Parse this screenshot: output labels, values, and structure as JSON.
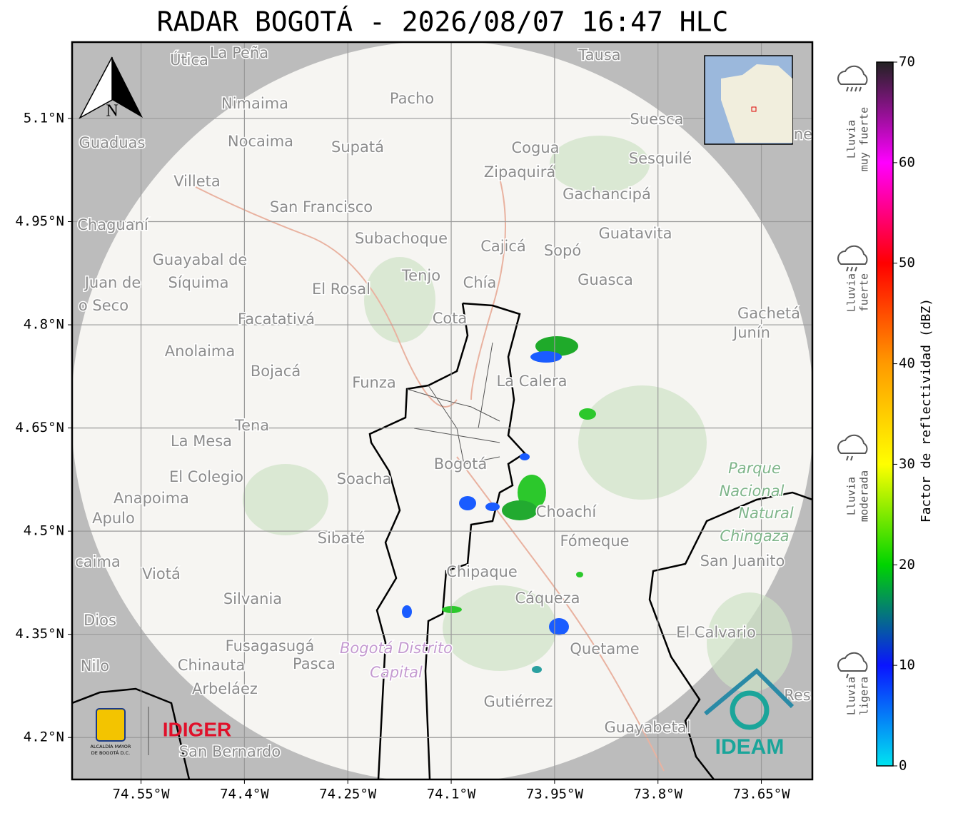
{
  "title": "RADAR BOGOTÁ - 2026/08/07 16:47 HLC",
  "map": {
    "xlim": [
      -74.65,
      -73.576
    ],
    "ylim": [
      4.139,
      5.211
    ],
    "xticks": [
      {
        "value": -74.55,
        "label": "74.55°W"
      },
      {
        "value": -74.4,
        "label": "74.4°W"
      },
      {
        "value": -74.25,
        "label": "74.25°W"
      },
      {
        "value": -74.1,
        "label": "74.1°W"
      },
      {
        "value": -73.95,
        "label": "73.95°W"
      },
      {
        "value": -73.8,
        "label": "73.8°W"
      },
      {
        "value": -73.65,
        "label": "73.65°W"
      }
    ],
    "yticks": [
      {
        "value": 5.1,
        "label": "5.1°N"
      },
      {
        "value": 4.95,
        "label": "4.95°N"
      },
      {
        "value": 4.8,
        "label": "4.8°N"
      },
      {
        "value": 4.65,
        "label": "4.65°N"
      },
      {
        "value": 4.5,
        "label": "4.5°N"
      },
      {
        "value": 4.35,
        "label": "4.35°N"
      },
      {
        "value": 4.2,
        "label": "4.2°N"
      }
    ],
    "north": "N",
    "places": [
      "Útica",
      "La Peña",
      "Tausa",
      "Pacho",
      "Nimaima",
      "Suesca",
      "Guaduas",
      "Nocaima",
      "Supatá",
      "Cogua",
      "Sesquilé",
      "Zipaquirá",
      "Villeta",
      "Gachancipá",
      "San Francisco",
      "Chaguaní",
      "Guatavita",
      "Subachoque",
      "Cajicá",
      "Sopó",
      "Guayabal de",
      "Síquima",
      "Tenjo",
      "Chía",
      "Guasca",
      "Juan de",
      "El Rosal",
      "o Seco",
      "Cota",
      "Facatativá",
      "Gachetá",
      "Junín",
      "Anolaima",
      "Bojacá",
      "La Calera",
      "Funza",
      "Tena",
      "La Mesa",
      "Bogotá",
      "El Colegio",
      "Soacha",
      "Anapoima",
      "Apulo",
      "Choachí",
      "Sibaté",
      "Fómeque",
      "caima",
      "San Juanito",
      "Viotá",
      "Chipaque",
      "Silvania",
      "Cáqueza",
      "Dios",
      "El Calvario",
      "Fusagasugá",
      "Quetame",
      "Nilo",
      "Chinauta",
      "Pasca",
      "Arbeláez",
      "Gutiérrez",
      "Res",
      "Guayabetal",
      "San Bernardo",
      "ne"
    ],
    "park": [
      "Parque",
      "Nacional",
      "Natural",
      "Chingaza"
    ],
    "district": [
      "Bogotá Distrito",
      "Capital"
    ]
  },
  "colorbar": {
    "label": "Factor de reflectividad (dBZ)",
    "lim": [
      0,
      70
    ],
    "ticks": [
      0,
      10,
      20,
      30,
      40,
      50,
      60,
      70
    ],
    "colors": [
      "#00e4f0",
      "#0a14ff",
      "#00d400",
      "#ffff00",
      "#ff9a00",
      "#ff0000",
      "#ff00ff",
      "#222222"
    ]
  },
  "rain_levels": [
    [
      "Lluvia",
      "muy fuerte"
    ],
    [
      "Lluvia",
      "fuerte"
    ],
    [
      "Lluvia",
      "moderada"
    ],
    [
      "Lluvia",
      "ligera"
    ]
  ],
  "logos": {
    "alcaldia": [
      "ALCALDÍA MAYOR",
      "DE BOGOTÁ D.C."
    ],
    "idiger": "IDIGER",
    "ideam": "IDEAM"
  }
}
